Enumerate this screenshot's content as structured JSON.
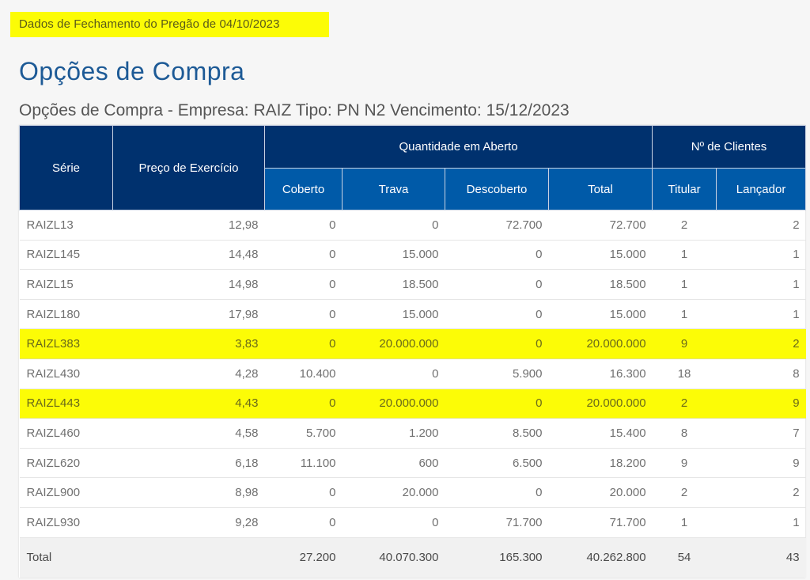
{
  "header": {
    "closing_label": "Dados de Fechamento do Pregão de 04/10/2023",
    "page_title": "Opções de Compra",
    "table_title": "Opções de Compra - Empresa: RAIZ Tipo: PN N2 Vencimento: 15/12/2023"
  },
  "colors": {
    "header_dark": "#00316e",
    "header_mid": "#005aa8",
    "highlight": "#fcfc06",
    "title_blue": "#1d5a96"
  },
  "table": {
    "headers": {
      "serie": "Série",
      "preco": "Preço de Exercício",
      "quantidade_group": "Quantidade em Aberto",
      "clientes_group": "Nº de Clientes",
      "coberto": "Coberto",
      "trava": "Trava",
      "descoberto": "Descoberto",
      "total": "Total",
      "titular": "Titular",
      "lancador": "Lançador"
    },
    "rows": [
      {
        "serie": "RAIZL13",
        "preco": "12,98",
        "coberto": "0",
        "trava": "0",
        "descoberto": "72.700",
        "total": "72.700",
        "titular": "2",
        "lancador": "2",
        "highlight": false
      },
      {
        "serie": "RAIZL145",
        "preco": "14,48",
        "coberto": "0",
        "trava": "15.000",
        "descoberto": "0",
        "total": "15.000",
        "titular": "1",
        "lancador": "1",
        "highlight": false
      },
      {
        "serie": "RAIZL15",
        "preco": "14,98",
        "coberto": "0",
        "trava": "18.500",
        "descoberto": "0",
        "total": "18.500",
        "titular": "1",
        "lancador": "1",
        "highlight": false
      },
      {
        "serie": "RAIZL180",
        "preco": "17,98",
        "coberto": "0",
        "trava": "15.000",
        "descoberto": "0",
        "total": "15.000",
        "titular": "1",
        "lancador": "1",
        "highlight": false
      },
      {
        "serie": "RAIZL383",
        "preco": "3,83",
        "coberto": "0",
        "trava": "20.000.000",
        "descoberto": "0",
        "total": "20.000.000",
        "titular": "9",
        "lancador": "2",
        "highlight": true
      },
      {
        "serie": "RAIZL430",
        "preco": "4,28",
        "coberto": "10.400",
        "trava": "0",
        "descoberto": "5.900",
        "total": "16.300",
        "titular": "18",
        "lancador": "8",
        "highlight": false
      },
      {
        "serie": "RAIZL443",
        "preco": "4,43",
        "coberto": "0",
        "trava": "20.000.000",
        "descoberto": "0",
        "total": "20.000.000",
        "titular": "2",
        "lancador": "9",
        "highlight": true
      },
      {
        "serie": "RAIZL460",
        "preco": "4,58",
        "coberto": "5.700",
        "trava": "1.200",
        "descoberto": "8.500",
        "total": "15.400",
        "titular": "8",
        "lancador": "7",
        "highlight": false
      },
      {
        "serie": "RAIZL620",
        "preco": "6,18",
        "coberto": "11.100",
        "trava": "600",
        "descoberto": "6.500",
        "total": "18.200",
        "titular": "9",
        "lancador": "9",
        "highlight": false
      },
      {
        "serie": "RAIZL900",
        "preco": "8,98",
        "coberto": "0",
        "trava": "20.000",
        "descoberto": "0",
        "total": "20.000",
        "titular": "2",
        "lancador": "2",
        "highlight": false
      },
      {
        "serie": "RAIZL930",
        "preco": "9,28",
        "coberto": "0",
        "trava": "0",
        "descoberto": "71.700",
        "total": "71.700",
        "titular": "1",
        "lancador": "1",
        "highlight": false
      }
    ],
    "totals": {
      "label": "Total",
      "preco": "",
      "coberto": "27.200",
      "trava": "40.070.300",
      "descoberto": "165.300",
      "total": "40.262.800",
      "titular": "54",
      "lancador": "43"
    }
  }
}
